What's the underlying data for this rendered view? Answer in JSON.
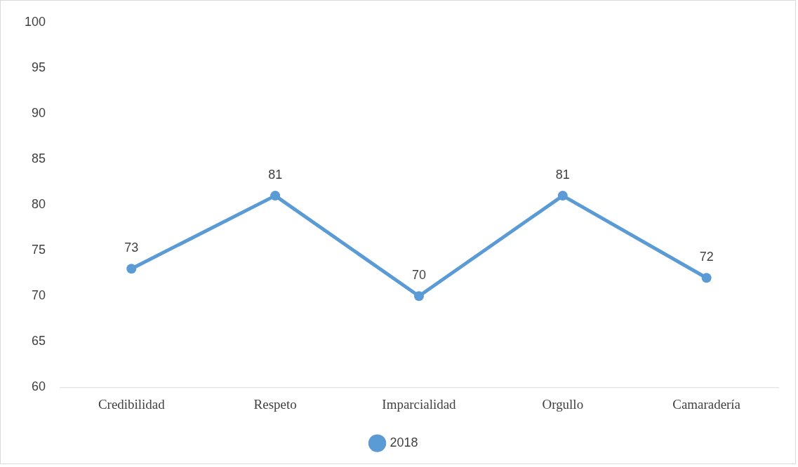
{
  "chart_data": {
    "type": "line",
    "categories": [
      "Credibilidad",
      "Respeto",
      "Imparcialidad",
      "Orgullo",
      "Camaradería"
    ],
    "series": [
      {
        "name": "2018",
        "color": "#5b9bd5",
        "values": [
          73,
          81,
          70,
          81,
          72
        ]
      }
    ],
    "ylim": [
      60,
      100
    ],
    "yticks": [
      60,
      65,
      70,
      75,
      80,
      85,
      90,
      95,
      100
    ],
    "grid": false,
    "legend": "bottom",
    "marker": "circle",
    "line_style": "solid",
    "data_labels": true
  }
}
